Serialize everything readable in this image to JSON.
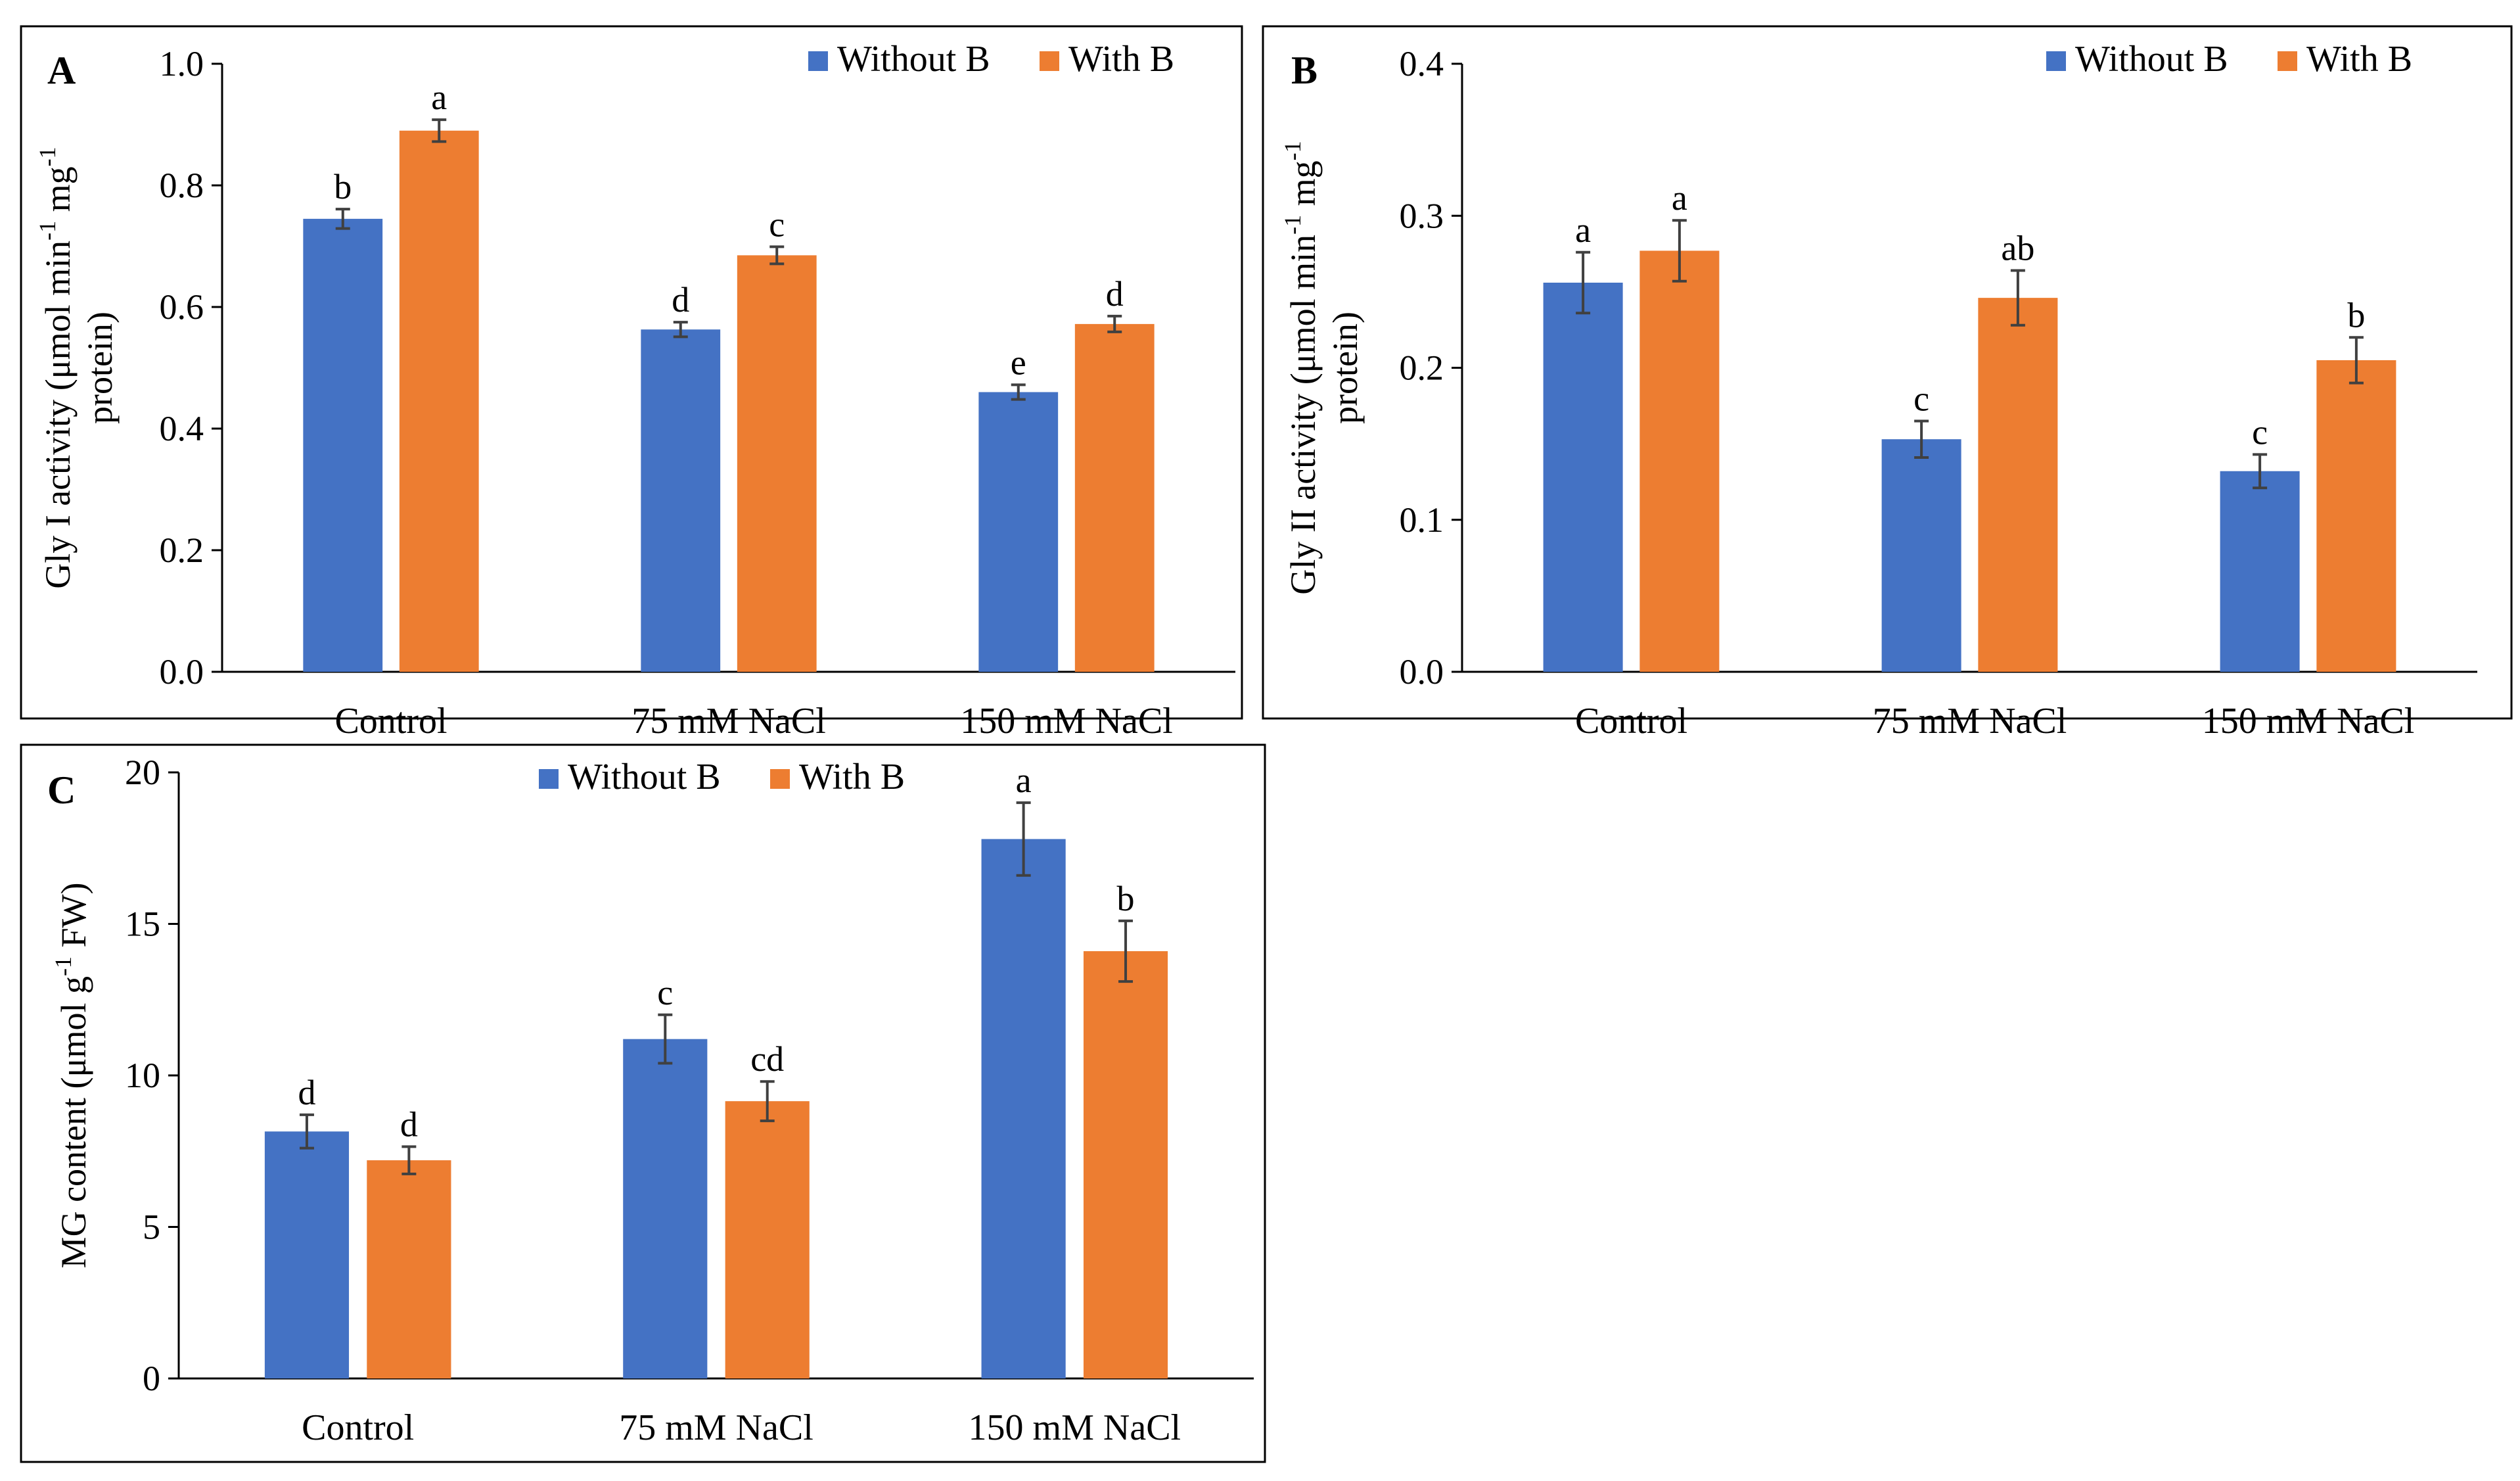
{
  "colors": {
    "without_b": "#4472C4",
    "with_b": "#ED7D31"
  },
  "chart_data": [
    {
      "id": "A",
      "type": "bar",
      "panel_label": "A",
      "categories": [
        "Control",
        "75 mM NaCl",
        "150 mM NaCl"
      ],
      "ylabel_line1": "Gly I activity (μmol min",
      "ylabel_sup1": "-1",
      "ylabel_mid": " mg",
      "ylabel_sup2": "-1",
      "ylabel_line2": "protein)",
      "ylim": [
        0,
        1.0
      ],
      "yticks": [
        "0.0",
        "0.2",
        "0.4",
        "0.6",
        "0.8",
        "1.0"
      ],
      "ytick_values": [
        0,
        0.2,
        0.4,
        0.6,
        0.8,
        1.0
      ],
      "legend": [
        "Without B",
        "With B"
      ],
      "series": [
        {
          "name": "Without B",
          "values": [
            0.745,
            0.563,
            0.46
          ],
          "errors": [
            0.016,
            0.012,
            0.012
          ],
          "letters": [
            "b",
            "d",
            "e"
          ]
        },
        {
          "name": "With B",
          "values": [
            0.89,
            0.685,
            0.572
          ],
          "errors": [
            0.018,
            0.014,
            0.013
          ],
          "letters": [
            "a",
            "c",
            "d"
          ]
        }
      ]
    },
    {
      "id": "B",
      "type": "bar",
      "panel_label": "B",
      "categories": [
        "Control",
        "75 mM NaCl",
        "150 mM NaCl"
      ],
      "ylabel_line1": "Gly II activity (μmol min",
      "ylabel_sup1": "-1",
      "ylabel_mid": " mg",
      "ylabel_sup2": "-1",
      "ylabel_line2": "protein)",
      "ylim": [
        0,
        0.4
      ],
      "yticks": [
        "0.0",
        "0.1",
        "0.2",
        "0.3",
        "0.4"
      ],
      "ytick_values": [
        0,
        0.1,
        0.2,
        0.3,
        0.4
      ],
      "legend": [
        "Without B",
        "With B"
      ],
      "series": [
        {
          "name": "Without B",
          "values": [
            0.256,
            0.153,
            0.132
          ],
          "errors": [
            0.02,
            0.012,
            0.011
          ],
          "letters": [
            "a",
            "c",
            "c"
          ]
        },
        {
          "name": "With B",
          "values": [
            0.277,
            0.246,
            0.205
          ],
          "errors": [
            0.02,
            0.018,
            0.015
          ],
          "letters": [
            "a",
            "ab",
            "b"
          ]
        }
      ]
    },
    {
      "id": "C",
      "type": "bar",
      "panel_label": "C",
      "categories": [
        "Control",
        "75 mM NaCl",
        "150 mM NaCl"
      ],
      "ylabel_line1": "MG content (μmol g",
      "ylabel_sup1": "-1",
      "ylabel_mid": " FW)",
      "ylabel_sup2": "",
      "ylabel_line2": "",
      "ylim": [
        0,
        20
      ],
      "yticks": [
        "0",
        "5",
        "10",
        "15",
        "20"
      ],
      "ytick_values": [
        0,
        5,
        10,
        15,
        20
      ],
      "legend": [
        "Without B",
        "With B"
      ],
      "series": [
        {
          "name": "Without B",
          "values": [
            8.15,
            11.2,
            17.8
          ],
          "errors": [
            0.55,
            0.8,
            1.2
          ],
          "letters": [
            "d",
            "c",
            "a"
          ]
        },
        {
          "name": "With B",
          "values": [
            7.2,
            9.15,
            14.1
          ],
          "errors": [
            0.45,
            0.65,
            1.0
          ],
          "letters": [
            "d",
            "cd",
            "b"
          ]
        }
      ]
    }
  ]
}
